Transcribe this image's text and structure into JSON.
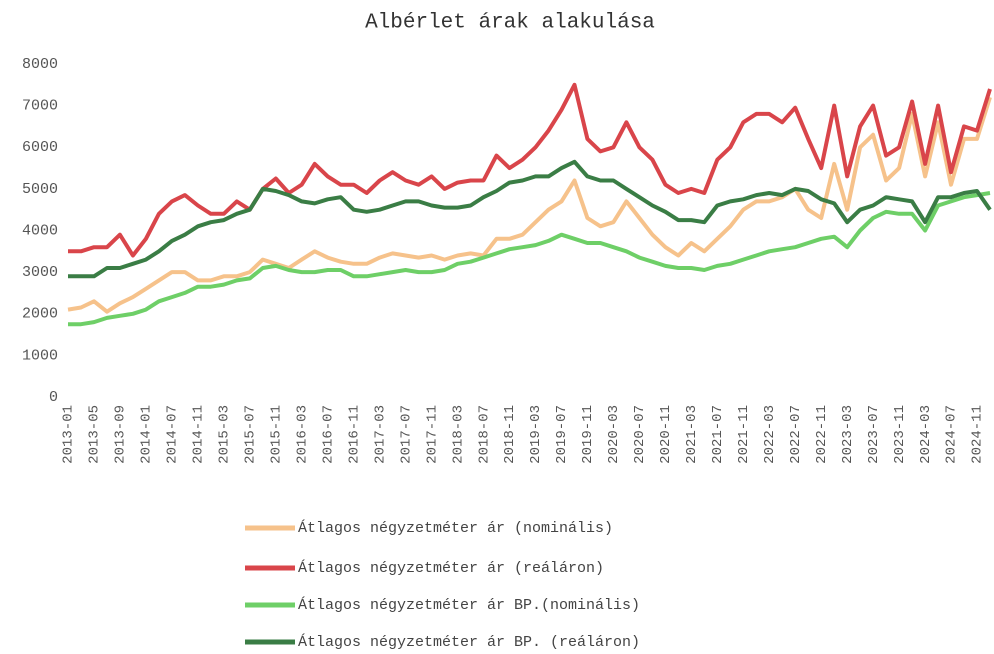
{
  "chart_data": {
    "type": "line",
    "title": "Albérlet árak alakulása",
    "categories": [
      "2013-01",
      null,
      "2013-05",
      null,
      "2013-09",
      null,
      "2014-01",
      null,
      "2014-07",
      null,
      "2014-11",
      null,
      "2015-03",
      null,
      "2015-07",
      null,
      "2015-11",
      null,
      "2016-03",
      null,
      "2016-07",
      null,
      "2016-11",
      null,
      "2017-03",
      null,
      "2017-07",
      null,
      "2017-11",
      null,
      "2018-03",
      null,
      "2018-07",
      null,
      "2018-11",
      null,
      "2019-03",
      null,
      "2019-07",
      null,
      "2019-11",
      null,
      "2020-03",
      null,
      "2020-07",
      null,
      "2020-11",
      null,
      "2021-03",
      null,
      "2021-07",
      null,
      "2021-11",
      null,
      "2022-03",
      null,
      "2022-07",
      null,
      "2022-11",
      null,
      "2023-03",
      null,
      "2023-07",
      null,
      "2023-11",
      null,
      "2024-03",
      null,
      "2024-07",
      null,
      "2024-11",
      null
    ],
    "series": [
      {
        "name": "Átlagos négyzetméter ár (nominális)",
        "color": "#f6c28b",
        "values": [
          2100,
          2150,
          2300,
          2050,
          2250,
          2400,
          2600,
          2800,
          3000,
          3000,
          2800,
          2800,
          2900,
          2900,
          3000,
          3300,
          3200,
          3100,
          3300,
          3500,
          3350,
          3250,
          3200,
          3200,
          3350,
          3450,
          3400,
          3350,
          3400,
          3300,
          3400,
          3450,
          3400,
          3800,
          3800,
          3900,
          4200,
          4500,
          4700,
          5200,
          4300,
          4100,
          4200,
          4700,
          4300,
          3900,
          3600,
          3400,
          3700,
          3500,
          3800,
          4100,
          4500,
          4700,
          4700,
          4800,
          5000,
          4500,
          4300,
          5600,
          4500,
          6000,
          6300,
          5200,
          5500,
          6800,
          5300,
          6600,
          5100,
          6200,
          6200,
          7200
        ]
      },
      {
        "name": "Átlagos négyzetméter ár (reáláron)",
        "color": "#d9454a",
        "values": [
          3500,
          3500,
          3600,
          3600,
          3900,
          3400,
          3800,
          4400,
          4700,
          4850,
          4600,
          4400,
          4400,
          4700,
          4500,
          5000,
          5250,
          4900,
          5100,
          5600,
          5300,
          5100,
          5100,
          4900,
          5200,
          5400,
          5200,
          5100,
          5300,
          5000,
          5150,
          5200,
          5200,
          5800,
          5500,
          5700,
          6000,
          6400,
          6900,
          7500,
          6200,
          5900,
          6000,
          6600,
          6000,
          5700,
          5100,
          4900,
          5000,
          4900,
          5700,
          6000,
          6600,
          6800,
          6800,
          6600,
          6950,
          6200,
          5500,
          7000,
          5300,
          6500,
          7000,
          5800,
          6000,
          7100,
          5600,
          7000,
          5400,
          6500,
          6400,
          7400
        ]
      },
      {
        "name": "Átlagos négyzetméter ár BP.(nominális)",
        "color": "#6ecf67",
        "values": [
          1750,
          1750,
          1800,
          1900,
          1950,
          2000,
          2100,
          2300,
          2400,
          2500,
          2650,
          2650,
          2700,
          2800,
          2850,
          3100,
          3150,
          3050,
          3000,
          3000,
          3050,
          3050,
          2900,
          2900,
          2950,
          3000,
          3050,
          3000,
          3000,
          3050,
          3200,
          3250,
          3350,
          3450,
          3550,
          3600,
          3650,
          3750,
          3900,
          3800,
          3700,
          3700,
          3600,
          3500,
          3350,
          3250,
          3150,
          3100,
          3100,
          3050,
          3150,
          3200,
          3300,
          3400,
          3500,
          3550,
          3600,
          3700,
          3800,
          3850,
          3600,
          4000,
          4300,
          4450,
          4400,
          4400,
          4000,
          4600,
          4700,
          4800,
          4850,
          4900
        ]
      },
      {
        "name": "Átlagos négyzetméter ár BP. (reáláron)",
        "color": "#3a7d45",
        "values": [
          2900,
          2900,
          2900,
          3100,
          3100,
          3200,
          3300,
          3500,
          3750,
          3900,
          4100,
          4200,
          4250,
          4400,
          4500,
          5000,
          4950,
          4850,
          4700,
          4650,
          4750,
          4800,
          4500,
          4450,
          4500,
          4600,
          4700,
          4700,
          4600,
          4550,
          4550,
          4600,
          4800,
          4950,
          5150,
          5200,
          5300,
          5300,
          5500,
          5650,
          5300,
          5200,
          5200,
          5000,
          4800,
          4600,
          4450,
          4250,
          4250,
          4200,
          4600,
          4700,
          4750,
          4850,
          4900,
          4850,
          5000,
          4950,
          4750,
          4650,
          4200,
          4500,
          4600,
          4800,
          4750,
          4700,
          4200,
          4800,
          4800,
          4900,
          4950,
          4500
        ]
      }
    ],
    "ylim": [
      0,
      8000
    ],
    "yticks": [
      0,
      1000,
      2000,
      3000,
      4000,
      5000,
      6000,
      7000,
      8000
    ]
  }
}
